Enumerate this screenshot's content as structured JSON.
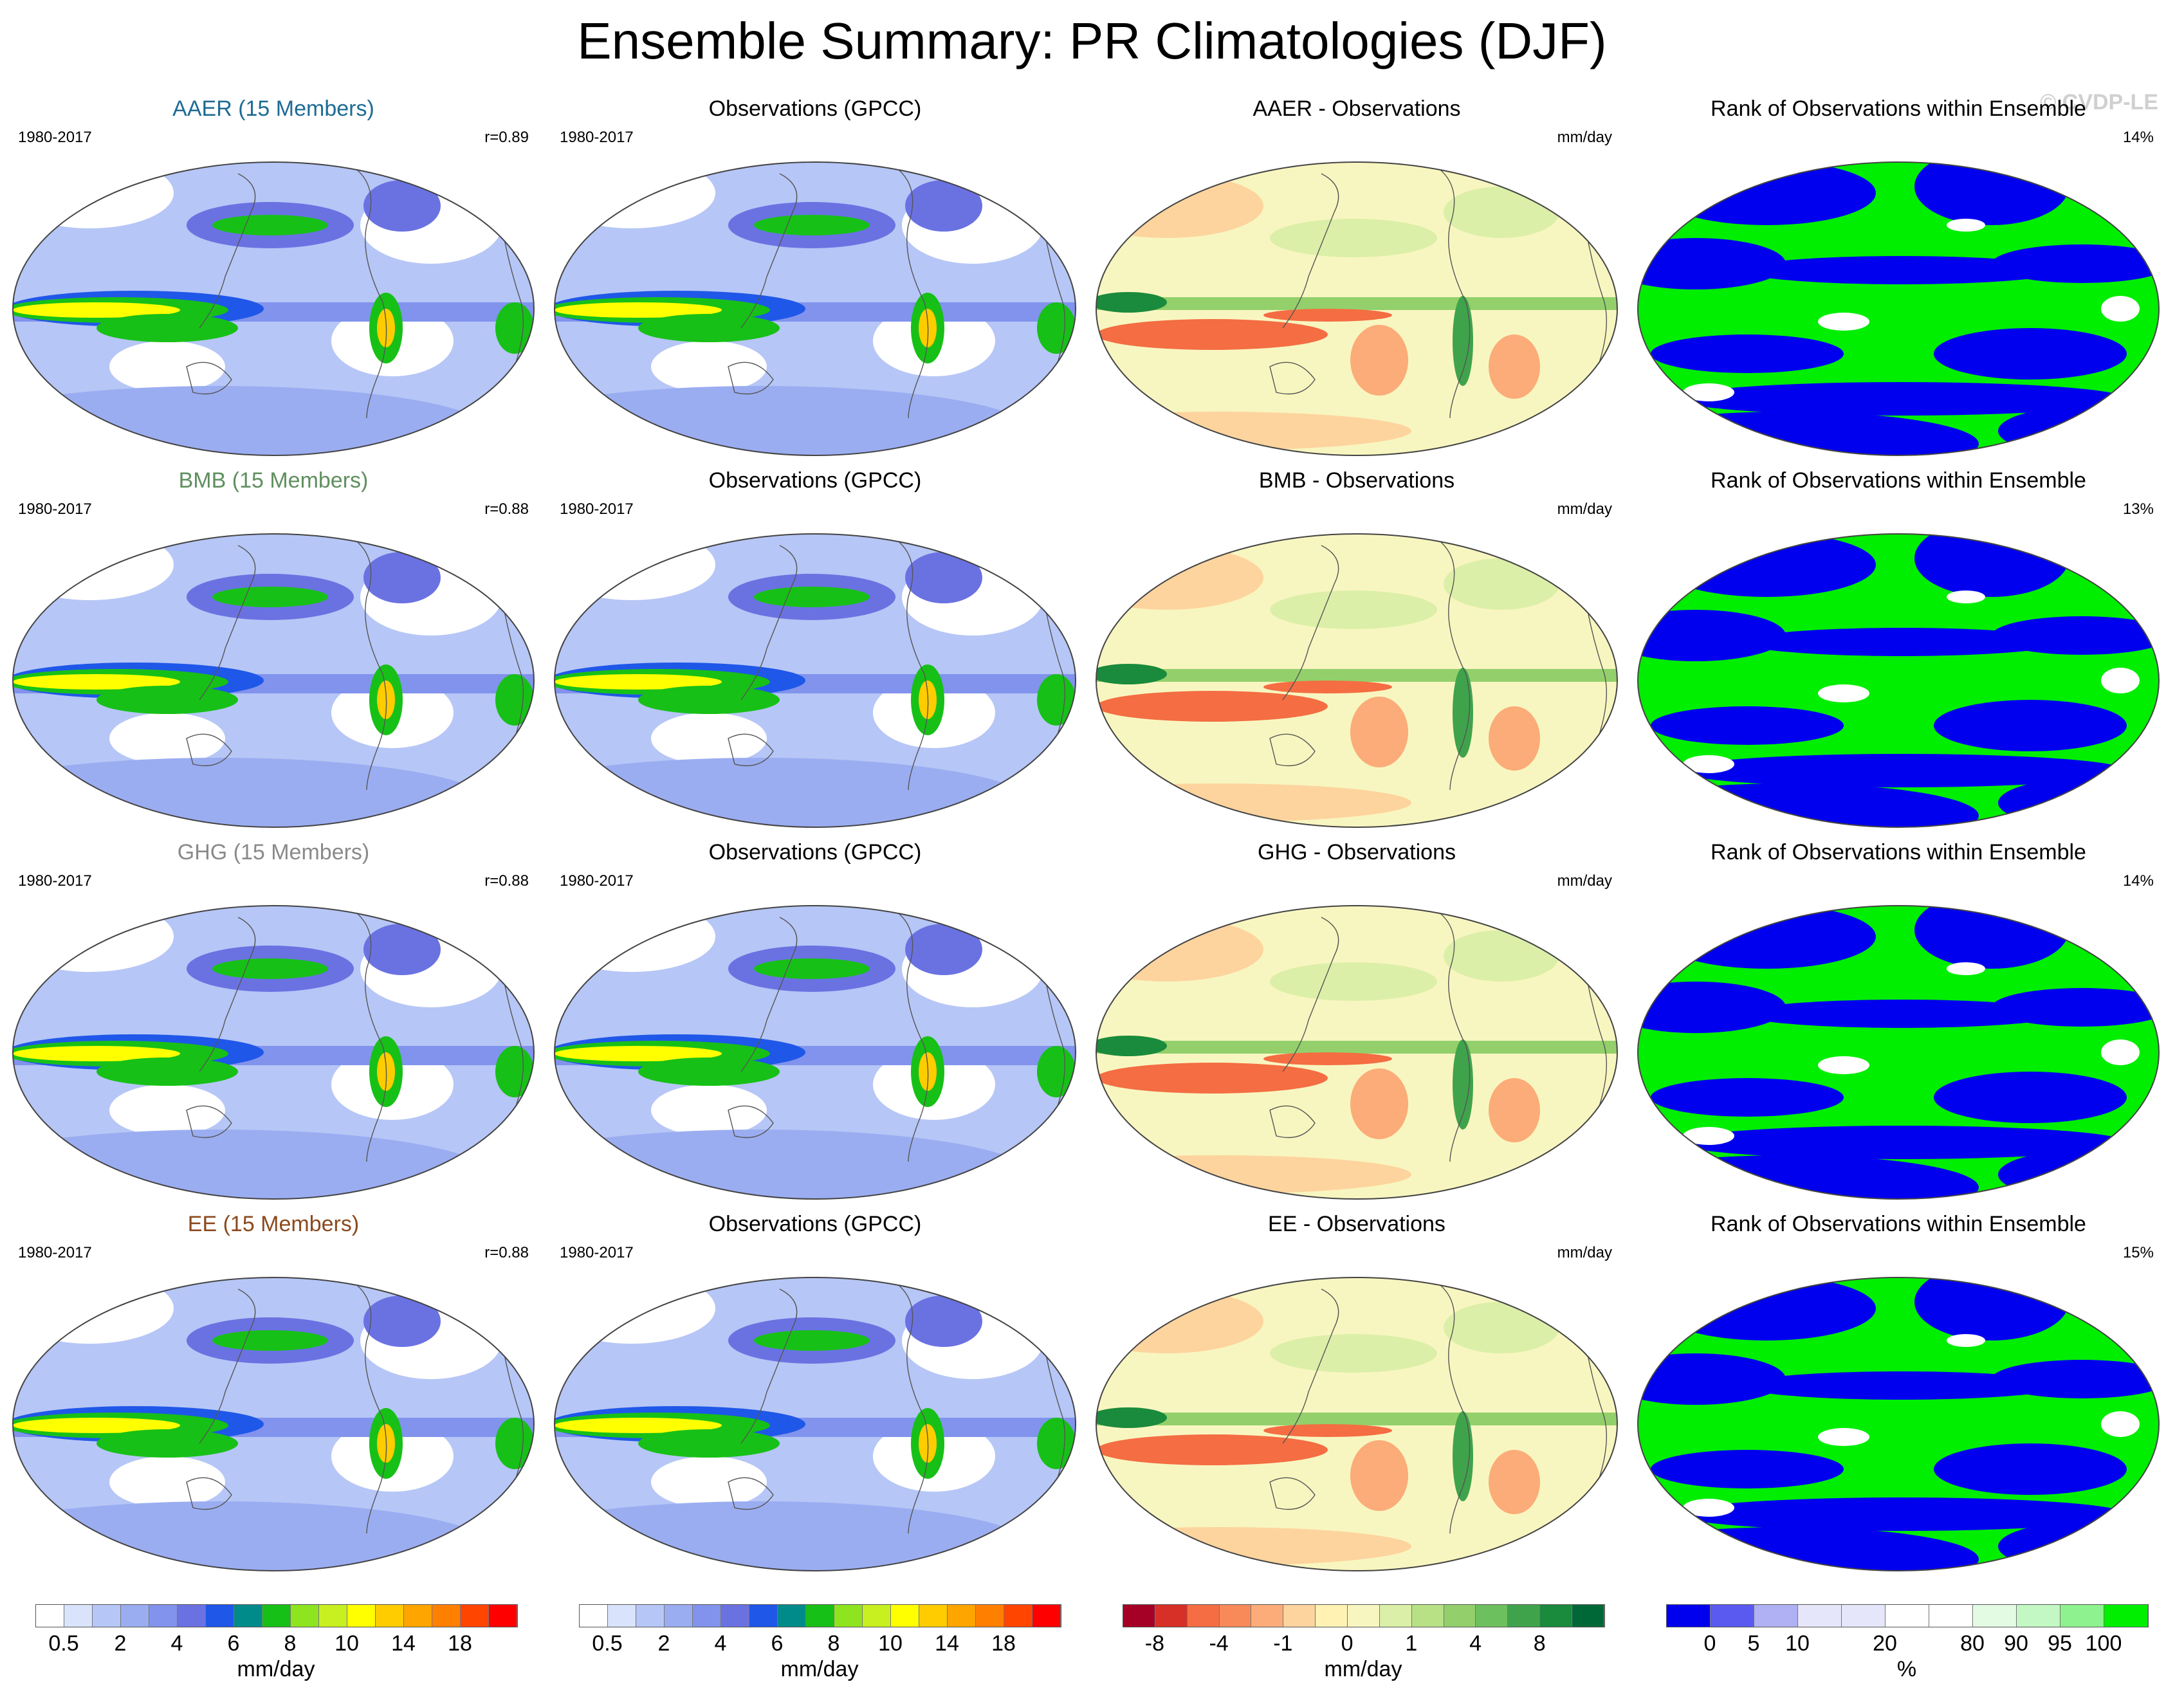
{
  "figure": {
    "title": "Ensemble Summary: PR Climatologies (DJF)",
    "watermark": "© CVDP-LE"
  },
  "chart_data": {
    "type": "map-panel-grid",
    "rows": [
      {
        "model": {
          "title": "AAER (15 Members)",
          "color": "#1e6b94",
          "period": "1980-2017",
          "stat": "r=0.89"
        },
        "obs": {
          "title": "Observations (GPCC)",
          "period": "1980-2017"
        },
        "diff": {
          "title": "AAER - Observations",
          "units": "mm/day"
        },
        "rank": {
          "title": "Rank of Observations within Ensemble",
          "pct": "14%"
        }
      },
      {
        "model": {
          "title": "BMB (15 Members)",
          "color": "#5f8f5f",
          "period": "1980-2017",
          "stat": "r=0.88"
        },
        "obs": {
          "title": "Observations (GPCC)",
          "period": "1980-2017"
        },
        "diff": {
          "title": "BMB - Observations",
          "units": "mm/day"
        },
        "rank": {
          "title": "Rank of Observations within Ensemble",
          "pct": "13%"
        }
      },
      {
        "model": {
          "title": "GHG (15 Members)",
          "color": "#8a8a8a",
          "period": "1980-2017",
          "stat": "r=0.88"
        },
        "obs": {
          "title": "Observations (GPCC)",
          "period": "1980-2017"
        },
        "diff": {
          "title": "GHG - Observations",
          "units": "mm/day"
        },
        "rank": {
          "title": "Rank of Observations within Ensemble",
          "pct": "14%"
        }
      },
      {
        "model": {
          "title": "EE (15 Members)",
          "color": "#8b4a1e",
          "period": "1980-2017",
          "stat": "r=0.88"
        },
        "obs": {
          "title": "Observations (GPCC)",
          "period": "1980-2017"
        },
        "diff": {
          "title": "EE - Observations",
          "units": "mm/day"
        },
        "rank": {
          "title": "Rank of Observations within Ensemble",
          "pct": "15%"
        }
      }
    ],
    "colorbars": [
      {
        "label": "mm/day",
        "colors": [
          "#ffffff",
          "#d9e3fb",
          "#b6c6f6",
          "#9badf1",
          "#8193ec",
          "#6a72e2",
          "#1f57e8",
          "#008b8b",
          "#17c017",
          "#8ee41e",
          "#c8f020",
          "#ffff00",
          "#ffcc00",
          "#ffa500",
          "#ff7f00",
          "#ff4500",
          "#ff0000"
        ],
        "ticks": [
          {
            "label": "0.5",
            "index": 1
          },
          {
            "label": "2",
            "index": 3
          },
          {
            "label": "4",
            "index": 5
          },
          {
            "label": "6",
            "index": 7
          },
          {
            "label": "8",
            "index": 9
          },
          {
            "label": "10",
            "index": 11
          },
          {
            "label": "14",
            "index": 13
          },
          {
            "label": "18",
            "index": 15
          }
        ]
      },
      {
        "label": "mm/day",
        "colors": [
          "#ffffff",
          "#d9e3fb",
          "#b6c6f6",
          "#9badf1",
          "#8193ec",
          "#6a72e2",
          "#1f57e8",
          "#008b8b",
          "#17c017",
          "#8ee41e",
          "#c8f020",
          "#ffff00",
          "#ffcc00",
          "#ffa500",
          "#ff7f00",
          "#ff4500",
          "#ff0000"
        ],
        "ticks": [
          {
            "label": "0.5",
            "index": 1
          },
          {
            "label": "2",
            "index": 3
          },
          {
            "label": "4",
            "index": 5
          },
          {
            "label": "6",
            "index": 7
          },
          {
            "label": "8",
            "index": 9
          },
          {
            "label": "10",
            "index": 11
          },
          {
            "label": "14",
            "index": 13
          },
          {
            "label": "18",
            "index": 15
          }
        ]
      },
      {
        "label": "mm/day",
        "colors": [
          "#a50026",
          "#d73027",
          "#f46d43",
          "#f88a5a",
          "#fbac78",
          "#fdd49e",
          "#fff2b2",
          "#f8f6c0",
          "#dcefa8",
          "#b8e186",
          "#93d06b",
          "#6cc05d",
          "#3fa34c",
          "#1a8a3c",
          "#006837"
        ],
        "ticks": [
          {
            "label": "-8",
            "index": 1
          },
          {
            "label": "-4",
            "index": 3
          },
          {
            "label": "-1",
            "index": 5
          },
          {
            "label": "0",
            "index": 7
          },
          {
            "label": "1",
            "index": 9
          },
          {
            "label": "4",
            "index": 11
          },
          {
            "label": "8",
            "index": 13
          }
        ]
      },
      {
        "label": "%",
        "colors": [
          "#0000ee",
          "#5a5af0",
          "#b0b0f4",
          "#e6e6fa",
          "#e6e6fa",
          "#ffffff",
          "#ffffff",
          "#e3fbe3",
          "#c3f7c3",
          "#8ef28e",
          "#00ee00"
        ],
        "ticks": [
          {
            "label": "0",
            "index": 1
          },
          {
            "label": "5",
            "index": 2
          },
          {
            "label": "10",
            "index": 3
          },
          {
            "label": "20",
            "index": 5
          },
          {
            "label": "80",
            "index": 7
          },
          {
            "label": "90",
            "index": 8
          },
          {
            "label": "95",
            "index": 9
          },
          {
            "label": "100",
            "index": 10
          }
        ]
      }
    ]
  }
}
